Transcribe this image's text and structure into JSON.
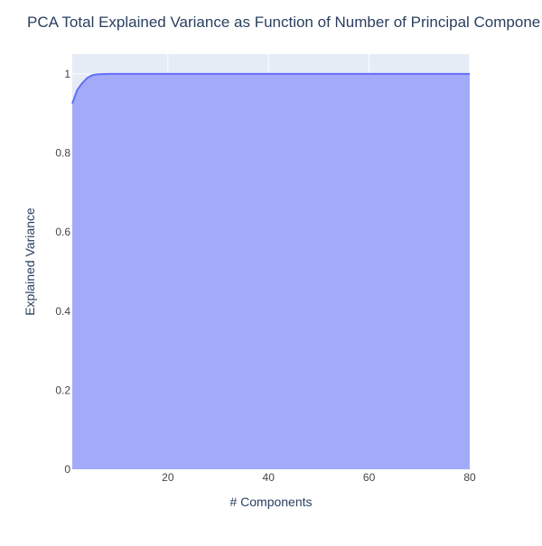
{
  "chart_data": {
    "type": "area",
    "title": "PCA Total Explained Variance as Function of Number of Principal Compone",
    "xlabel": "# Components",
    "ylabel": "Explained Variance",
    "xlim": [
      1,
      80
    ],
    "ylim": [
      0,
      1.05
    ],
    "x_ticks": [
      20,
      40,
      60,
      80
    ],
    "x_tick_labels": [
      "20",
      "40",
      "60",
      "80"
    ],
    "y_ticks": [
      0,
      0.2,
      0.4,
      0.6,
      0.8,
      1
    ],
    "y_tick_labels": [
      "0",
      "0.2",
      "0.4",
      "0.6",
      "0.8",
      "1"
    ],
    "grid": true,
    "legend": "none",
    "colors": {
      "plot_background": "#E5ECF6",
      "fill": "#A3ABF8",
      "line": "#636EFA",
      "grid": "#FFFFFF",
      "text": "#2A3F5F",
      "tick_text": "#444444"
    },
    "series": [
      {
        "x": [
          1,
          2,
          3,
          4,
          5,
          6,
          7,
          8,
          10,
          15,
          20,
          30,
          40,
          50,
          60,
          70,
          80
        ],
        "values": [
          0.925,
          0.96,
          0.977,
          0.99,
          0.997,
          0.999,
          0.9995,
          1.0,
          1.0,
          1.0,
          1.0,
          1.0,
          1.0,
          1.0,
          1.0,
          1.0,
          1.0
        ]
      }
    ]
  }
}
